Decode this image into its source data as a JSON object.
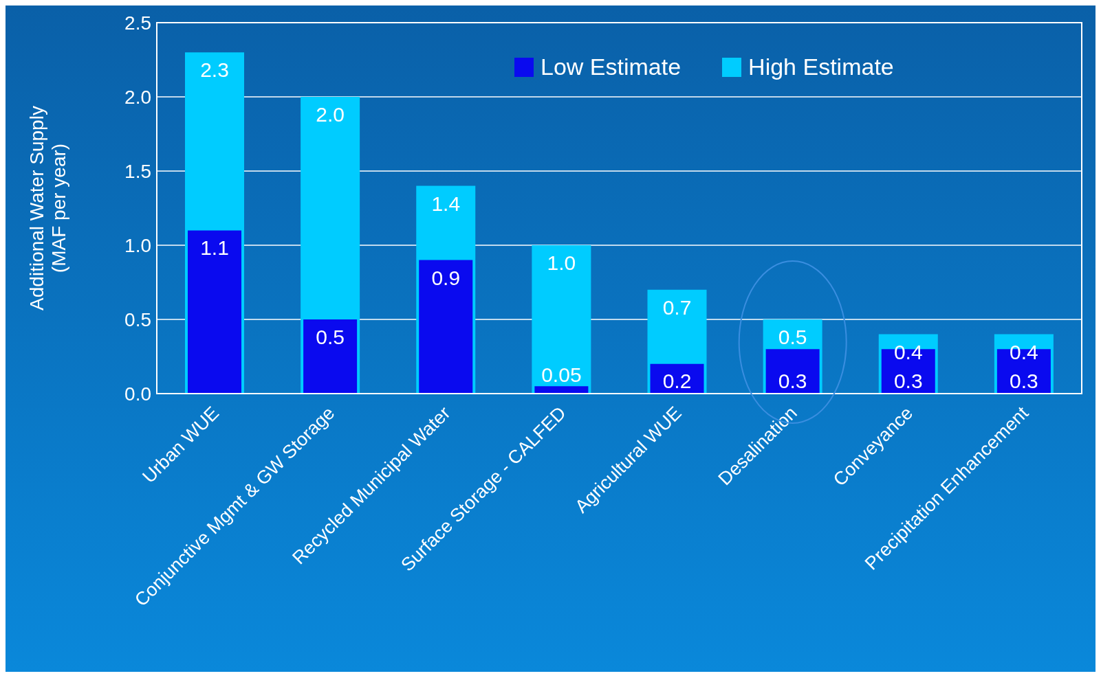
{
  "chart_data": {
    "type": "bar",
    "ylabel": "Additional Water Supply\n(MAF per year)",
    "categories": [
      "Urban WUE",
      "Conjunctive Mgmt & GW Storage",
      "Recycled Municipal Water",
      "Surface Storage - CALFED",
      "Agricultural WUE",
      "Desalination",
      "Conveyance",
      "Precipitation Enhancement"
    ],
    "series": [
      {
        "name": "Low Estimate",
        "color": "#0a0aef",
        "values": [
          1.1,
          0.5,
          0.9,
          0.05,
          0.2,
          0.3,
          0.3,
          0.3
        ],
        "value_labels": [
          "1.1",
          "0.5",
          "0.9",
          "0.05",
          "0.2",
          "0.3",
          "0.3",
          "0.3"
        ]
      },
      {
        "name": "High Estimate",
        "color": "#00ccff",
        "values": [
          2.3,
          2.0,
          1.4,
          1.0,
          0.7,
          0.5,
          0.4,
          0.4
        ],
        "value_labels": [
          "2.3",
          "2.0",
          "1.4",
          "1.0",
          "0.7",
          "0.5",
          "0.4",
          "0.4"
        ]
      }
    ],
    "ylim": [
      0,
      2.5
    ],
    "yticks": [
      {
        "value": 0,
        "label": "0.0"
      },
      {
        "value": 0.5,
        "label": "0.5"
      },
      {
        "value": 1,
        "label": "1.0"
      },
      {
        "value": 1.5,
        "label": "1.5"
      },
      {
        "value": 2,
        "label": "2.0"
      },
      {
        "value": 2.5,
        "label": "2.5"
      }
    ],
    "grid": "y",
    "legend": "top"
  }
}
